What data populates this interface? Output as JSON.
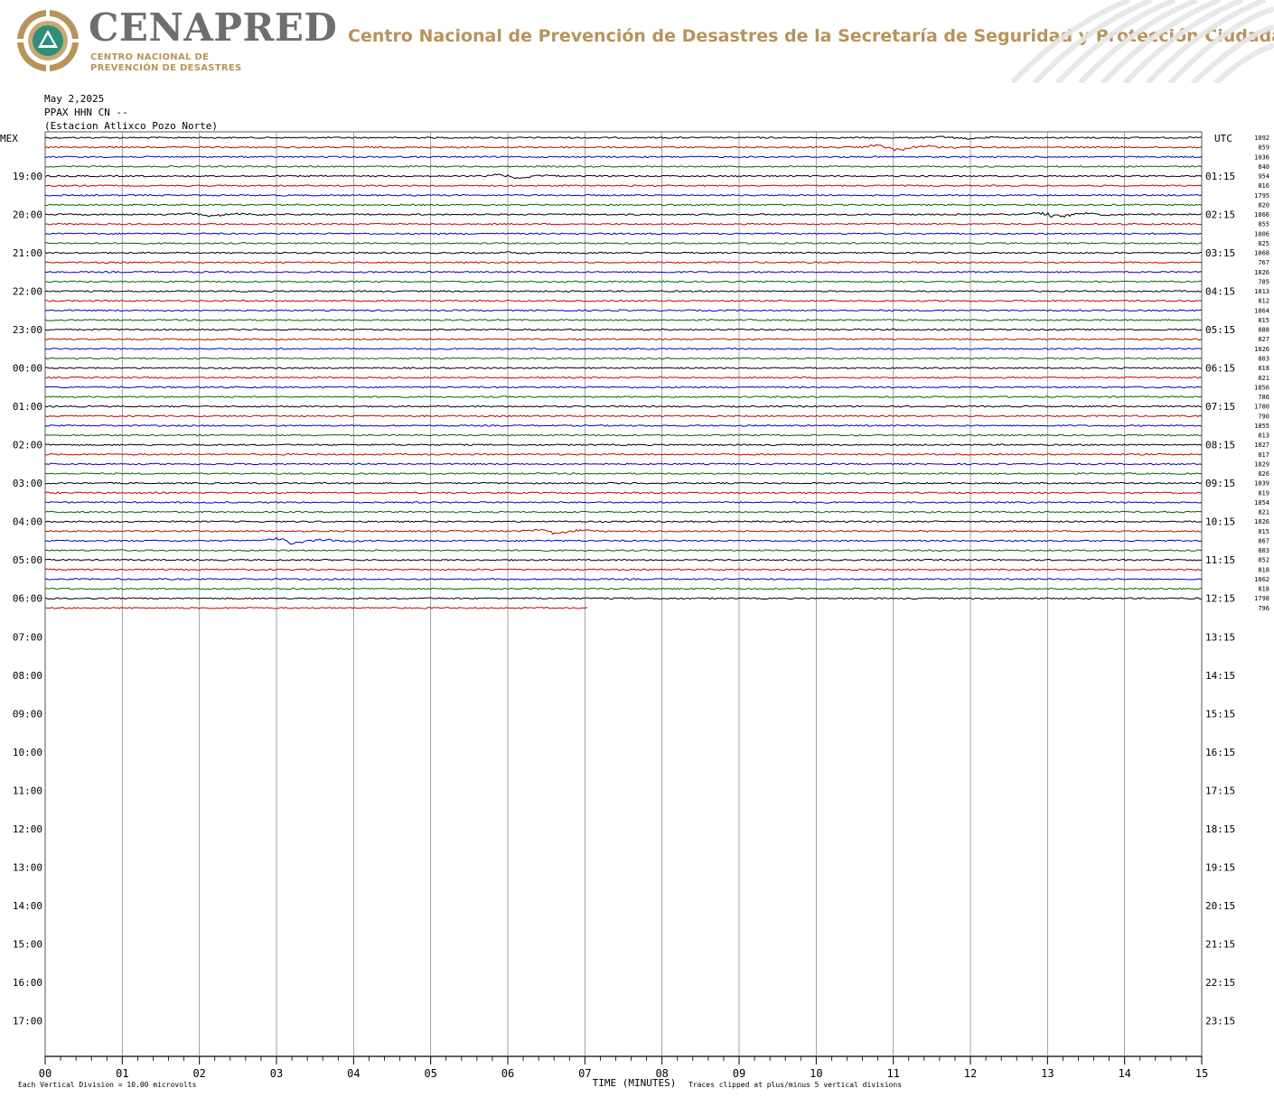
{
  "header": {
    "logo_word": "CENAPRED",
    "logo_sub_1": "CENTRO NACIONAL DE",
    "logo_sub_2": "PREVENCIÓN DE DESASTRES",
    "org_name": "Centro Nacional de Prevención de Desastres de la Secretaría de Seguridad y Protección Ciudadana",
    "colors": {
      "gold": "#b8935a",
      "gray": "#6e6e6e"
    }
  },
  "meta": {
    "date": "May 2,2025",
    "channel": "PPAX HHN CN --",
    "station": "(Estacion Atlixco Pozo Norte)"
  },
  "chart_data": {
    "type": "line",
    "title": "",
    "left_tz_label": "MEX",
    "right_tz_label": "UTC",
    "xlabel": "TIME (MINUTES)",
    "x_ticks": [
      "00",
      "01",
      "02",
      "03",
      "04",
      "05",
      "06",
      "07",
      "08",
      "09",
      "10",
      "11",
      "12",
      "13",
      "14",
      "15"
    ],
    "xlim": [
      0,
      15
    ],
    "left_hour_labels": [
      "19:00",
      "20:00",
      "21:00",
      "22:00",
      "23:00",
      "00:00",
      "01:00",
      "02:00",
      "03:00",
      "04:00",
      "05:00",
      "06:00",
      "07:00",
      "08:00",
      "09:00",
      "10:00",
      "11:00",
      "12:00",
      "13:00",
      "14:00",
      "15:00",
      "16:00",
      "17:00"
    ],
    "right_hour_labels": [
      "01:15",
      "02:15",
      "03:15",
      "04:15",
      "05:15",
      "06:15",
      "07:15",
      "08:15",
      "09:15",
      "10:15",
      "11:15",
      "12:15",
      "13:15",
      "14:15",
      "15:15",
      "16:15",
      "17:15",
      "18:15",
      "19:15",
      "20:15",
      "21:15",
      "22:15",
      "23:15"
    ],
    "trace_colors": [
      "#000000",
      "#cc0000",
      "#0000cc",
      "#006600"
    ],
    "trace_values": [
      "1092",
      "859",
      "1036",
      "840",
      "954",
      "816",
      "1795",
      "820",
      "1866",
      "855",
      "1806",
      "825",
      "1868",
      "767",
      "1826",
      "785",
      "1813",
      "812",
      "1864",
      "815",
      "888",
      "827",
      "1826",
      "803",
      "818",
      "821",
      "1856",
      "786",
      "1780",
      "790",
      "1855",
      "813",
      "1827",
      "817",
      "1829",
      "826",
      "1839",
      "819",
      "1854",
      "821",
      "1826",
      "815",
      "867",
      "803",
      "852",
      "818",
      "1862",
      "818",
      "1798",
      "796"
    ],
    "last_trace_end_minute": 7.05,
    "events": [
      {
        "trace": 1,
        "minute": 10.9,
        "amplitude": 3.5
      },
      {
        "trace": 0,
        "minute": 11.8,
        "amplitude": 1.5
      },
      {
        "trace": 4,
        "minute": 6.0,
        "amplitude": 2.5
      },
      {
        "trace": 8,
        "minute": 2.0,
        "amplitude": 2.0
      },
      {
        "trace": 8,
        "minute": 13.0,
        "amplitude": 3.0
      },
      {
        "trace": 12,
        "minute": 6.1,
        "amplitude": 0.8
      },
      {
        "trace": 42,
        "minute": 3.1,
        "amplitude": 3.5
      },
      {
        "trace": 41,
        "minute": 6.5,
        "amplitude": 3.0
      }
    ],
    "footer_left": "Each Vertical Division =   10.00 microvolts",
    "footer_right": "Traces clipped at plus/minus 5 vertical divisions"
  }
}
